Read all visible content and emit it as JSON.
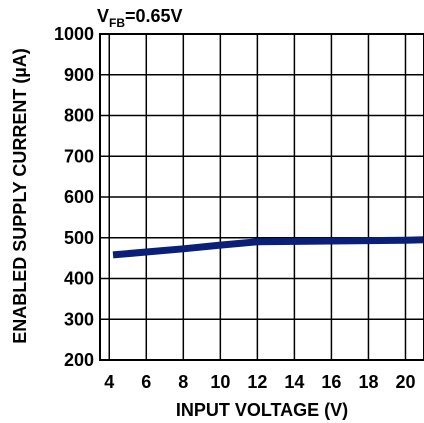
{
  "chart_data": {
    "type": "line",
    "title": "",
    "annotation": {
      "main": "V",
      "subscript": "FB",
      "rest": "=0.65V"
    },
    "xlabel": "INPUT VOLTAGE (V)",
    "ylabel": "ENABLED SUPPLY CURRENT (µA)",
    "xlim": [
      3.5,
      21.0
    ],
    "ylim": [
      200,
      1000
    ],
    "x_ticks": [
      4,
      6,
      8,
      10,
      12,
      14,
      16,
      18,
      20
    ],
    "y_ticks": [
      200,
      300,
      400,
      500,
      600,
      700,
      800,
      900,
      1000
    ],
    "grid": true,
    "series": [
      {
        "x": [
          4.2,
          6,
          8,
          10,
          12,
          14,
          16,
          18,
          20,
          21
        ],
        "y": [
          458,
          465,
          473,
          482,
          490,
          491,
          492,
          493,
          494,
          495
        ],
        "color": "#0a1f78"
      }
    ]
  }
}
